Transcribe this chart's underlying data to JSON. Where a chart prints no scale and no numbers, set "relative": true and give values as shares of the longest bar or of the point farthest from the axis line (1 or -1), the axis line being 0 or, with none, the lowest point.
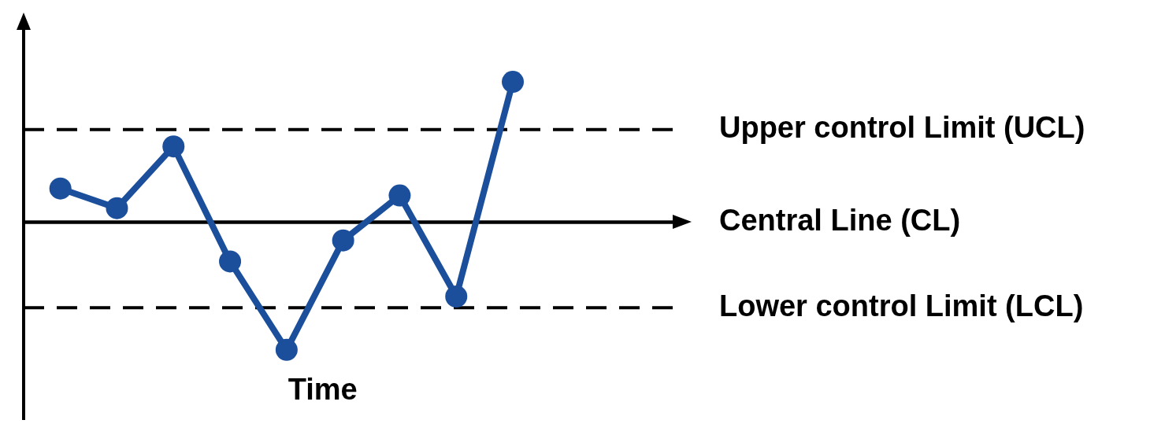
{
  "chart_data": {
    "type": "line",
    "relative": true,
    "xlabel": "Time",
    "categories": [
      null,
      null,
      null,
      null,
      null,
      null,
      null,
      null,
      null
    ],
    "series": [
      {
        "color": "#1b4f9c",
        "values": [
          0.24,
          0.1,
          0.54,
          -0.28,
          -0.91,
          -0.13,
          0.19,
          -0.53,
          1
        ]
      }
    ],
    "ref_lines": [
      {
        "axis": "y",
        "value": 0.66,
        "label": "Upper control Limit (UCL)",
        "line_style": "dashed",
        "color": "#000000"
      },
      {
        "axis": "y",
        "value": 0,
        "label": "Central Line (CL)",
        "line_style": "solid",
        "color": "#000000"
      },
      {
        "axis": "y",
        "value": -0.61,
        "label": "Lower control Limit (LCL)",
        "line_style": "dashed",
        "color": "#000000"
      }
    ],
    "marker": "circle",
    "line_style": "solid",
    "legend": false
  }
}
